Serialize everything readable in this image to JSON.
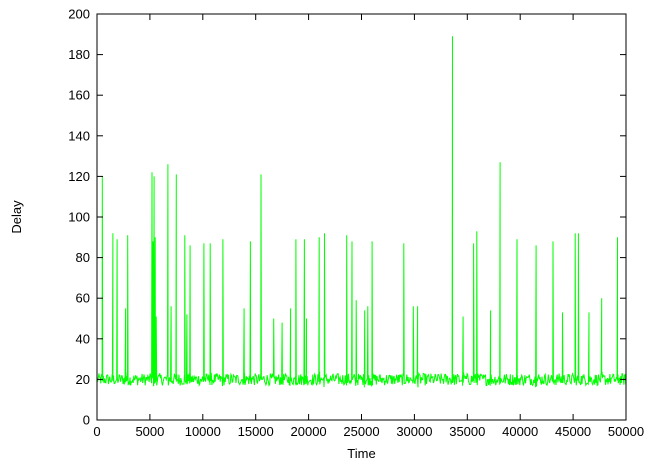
{
  "chart_data": {
    "type": "line",
    "title": "",
    "xlabel": "Time",
    "ylabel": "Delay",
    "xlim": [
      0,
      50000
    ],
    "ylim": [
      0,
      200
    ],
    "x_ticks": [
      0,
      5000,
      10000,
      15000,
      20000,
      25000,
      30000,
      35000,
      40000,
      45000,
      50000
    ],
    "y_ticks": [
      0,
      20,
      40,
      60,
      80,
      100,
      120,
      140,
      160,
      180,
      200
    ],
    "x_tick_labels": [
      "0",
      "5000",
      "10000",
      "15000",
      "20000",
      "25000",
      "30000",
      "35000",
      "40000",
      "45000",
      "50000"
    ],
    "y_tick_labels": [
      "0",
      "20",
      "40",
      "60",
      "80",
      "100",
      "120",
      "140",
      "160",
      "180",
      "200"
    ],
    "grid": false,
    "legend": "none",
    "series_color": "#00ff00",
    "baseline_range": [
      16,
      24
    ],
    "spikes": [
      [
        500,
        120
      ],
      [
        1500,
        92
      ],
      [
        1900,
        89
      ],
      [
        2700,
        55
      ],
      [
        2900,
        91
      ],
      [
        5200,
        122
      ],
      [
        5300,
        88
      ],
      [
        5400,
        120
      ],
      [
        5500,
        90
      ],
      [
        5600,
        51
      ],
      [
        6700,
        126
      ],
      [
        7000,
        56
      ],
      [
        7500,
        121
      ],
      [
        8300,
        91
      ],
      [
        8500,
        52
      ],
      [
        8800,
        86
      ],
      [
        10100,
        87
      ],
      [
        10700,
        87
      ],
      [
        11900,
        89
      ],
      [
        13900,
        55
      ],
      [
        14500,
        88
      ],
      [
        15500,
        121
      ],
      [
        16700,
        50
      ],
      [
        17500,
        48
      ],
      [
        18300,
        55
      ],
      [
        18800,
        89
      ],
      [
        19600,
        89
      ],
      [
        19800,
        50
      ],
      [
        21000,
        90
      ],
      [
        21500,
        92
      ],
      [
        23600,
        91
      ],
      [
        24100,
        88
      ],
      [
        24500,
        59
      ],
      [
        25300,
        54
      ],
      [
        25600,
        56
      ],
      [
        26000,
        88
      ],
      [
        29000,
        87
      ],
      [
        29900,
        56
      ],
      [
        30300,
        56
      ],
      [
        33600,
        189
      ],
      [
        34600,
        51
      ],
      [
        35600,
        87
      ],
      [
        35900,
        93
      ],
      [
        37200,
        54
      ],
      [
        38100,
        127
      ],
      [
        39700,
        89
      ],
      [
        41500,
        86
      ],
      [
        43100,
        88
      ],
      [
        44000,
        53
      ],
      [
        45200,
        92
      ],
      [
        45500,
        92
      ],
      [
        46500,
        53
      ],
      [
        47700,
        60
      ],
      [
        49200,
        90
      ]
    ]
  }
}
